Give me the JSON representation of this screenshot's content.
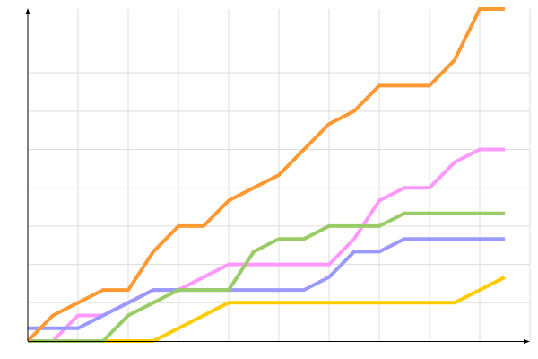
{
  "chart_data": {
    "type": "line",
    "title": "",
    "xlabel": "",
    "ylabel": "",
    "x": [
      0,
      1,
      2,
      3,
      4,
      5,
      6,
      7,
      8,
      9,
      10,
      11,
      12,
      13,
      14,
      15,
      16,
      17,
      18,
      19
    ],
    "xlim": [
      0,
      20
    ],
    "ylim": [
      0,
      26
    ],
    "grid": true,
    "legend": "none",
    "series": [
      {
        "color": "#ffcc00",
        "values": [
          0,
          0,
          0,
          0,
          0,
          0,
          1,
          2,
          3,
          3,
          3,
          3,
          3,
          3,
          3,
          3,
          3,
          3,
          4,
          5
        ]
      },
      {
        "color": "#ff99ff",
        "values": [
          null,
          0,
          2,
          2,
          3,
          4,
          4,
          5,
          6,
          6,
          6,
          6,
          6,
          8,
          11,
          12,
          12,
          14,
          15,
          15
        ]
      },
      {
        "color": "#9999ff",
        "values": [
          1,
          1,
          1,
          2,
          3,
          4,
          4,
          4,
          4,
          4,
          4,
          4,
          5,
          7,
          7,
          8,
          8,
          8,
          8,
          8
        ]
      },
      {
        "color": "#99cc66",
        "values": [
          0,
          0,
          0,
          0,
          2,
          3,
          4,
          4,
          4,
          7,
          8,
          8,
          9,
          9,
          9,
          10,
          10,
          10,
          10,
          10
        ]
      },
      {
        "color": "#ff9933",
        "values": [
          0,
          2,
          3,
          4,
          4,
          7,
          9,
          9,
          11,
          12,
          13,
          15,
          17,
          18,
          20,
          20,
          20,
          22,
          26,
          26
        ]
      }
    ]
  }
}
